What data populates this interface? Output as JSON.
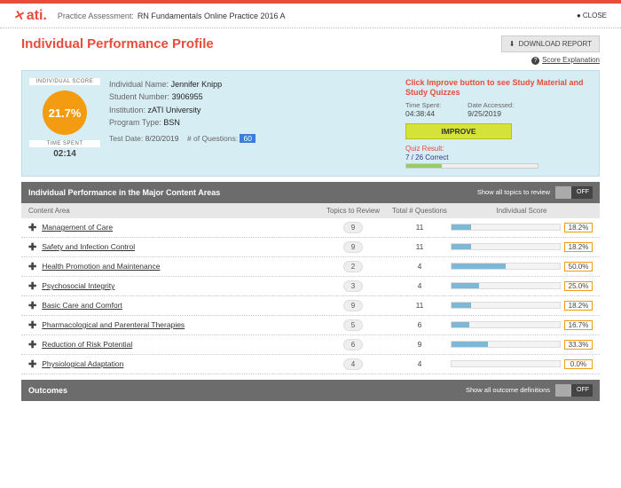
{
  "header": {
    "logo_text": "ati",
    "assessment_label": "Practice Assessment:",
    "assessment_name": "RN Fundamentals Online Practice 2016 A",
    "close_label": "CLOSE"
  },
  "page": {
    "title": "Individual Performance Profile",
    "download_label": "DOWNLOAD REPORT",
    "score_explanation": "Score Explanation"
  },
  "summary": {
    "score_header": "INDIVIDUAL SCORE",
    "score_pct": "21.7%",
    "time_header": "TIME SPENT",
    "time_spent": "02:14",
    "info": {
      "name_lbl": "Individual Name:",
      "name": "Jennifer Knipp",
      "num_lbl": "Student Number:",
      "num": "3906955",
      "inst_lbl": "Institution:",
      "inst": "zATI University",
      "prog_lbl": "Program Type:",
      "prog": "BSN",
      "date_lbl": "Test Date:",
      "date": "8/20/2019",
      "nq_lbl": "# of Questions:",
      "nq": "60"
    },
    "improve": {
      "title": "Click Improve button to see Study Material and Study Quizzes",
      "ts_lbl": "Time Spent:",
      "ts": "04:38:44",
      "da_lbl": "Date Accessed:",
      "da": "9/25/2019",
      "button": "IMPROVE",
      "quiz_lbl": "Quiz Result:",
      "quiz_result": "7 / 26 Correct",
      "quiz_pct": 27
    }
  },
  "content_section": {
    "title": "Individual Performance in the Major Content Areas",
    "toggle_label": "Show all topics to review",
    "toggle_state": "OFF",
    "columns": {
      "ca": "Content Area",
      "tr": "Topics to Review",
      "tq": "Total # Questions",
      "is": "Individual Score"
    },
    "rows": [
      {
        "name": "Management of Care",
        "tr": "9",
        "tq": "11",
        "pct": 18.2,
        "pct_txt": "18.2%"
      },
      {
        "name": "Safety and Infection Control",
        "tr": "9",
        "tq": "11",
        "pct": 18.2,
        "pct_txt": "18.2%"
      },
      {
        "name": "Health Promotion and Maintenance",
        "tr": "2",
        "tq": "4",
        "pct": 50.0,
        "pct_txt": "50.0%"
      },
      {
        "name": "Psychosocial Integrity",
        "tr": "3",
        "tq": "4",
        "pct": 25.0,
        "pct_txt": "25.0%"
      },
      {
        "name": "Basic Care and Comfort",
        "tr": "9",
        "tq": "11",
        "pct": 18.2,
        "pct_txt": "18.2%"
      },
      {
        "name": "Pharmacological and Parenteral Therapies",
        "tr": "5",
        "tq": "6",
        "pct": 16.7,
        "pct_txt": "16.7%"
      },
      {
        "name": "Reduction of Risk Potential",
        "tr": "6",
        "tq": "9",
        "pct": 33.3,
        "pct_txt": "33.3%"
      },
      {
        "name": "Physiological Adaptation",
        "tr": "4",
        "tq": "4",
        "pct": 0.0,
        "pct_txt": "0.0%"
      }
    ]
  },
  "outcomes_section": {
    "title": "Outcomes",
    "toggle_label": "Show all outcome definitions",
    "toggle_state": "OFF"
  },
  "colors": {
    "accent": "#e74c3c",
    "circle": "#f39c12",
    "bar_fill": "#7fb8d4",
    "improve_btn": "#d4e23a",
    "summary_bg": "#d6edf3"
  }
}
